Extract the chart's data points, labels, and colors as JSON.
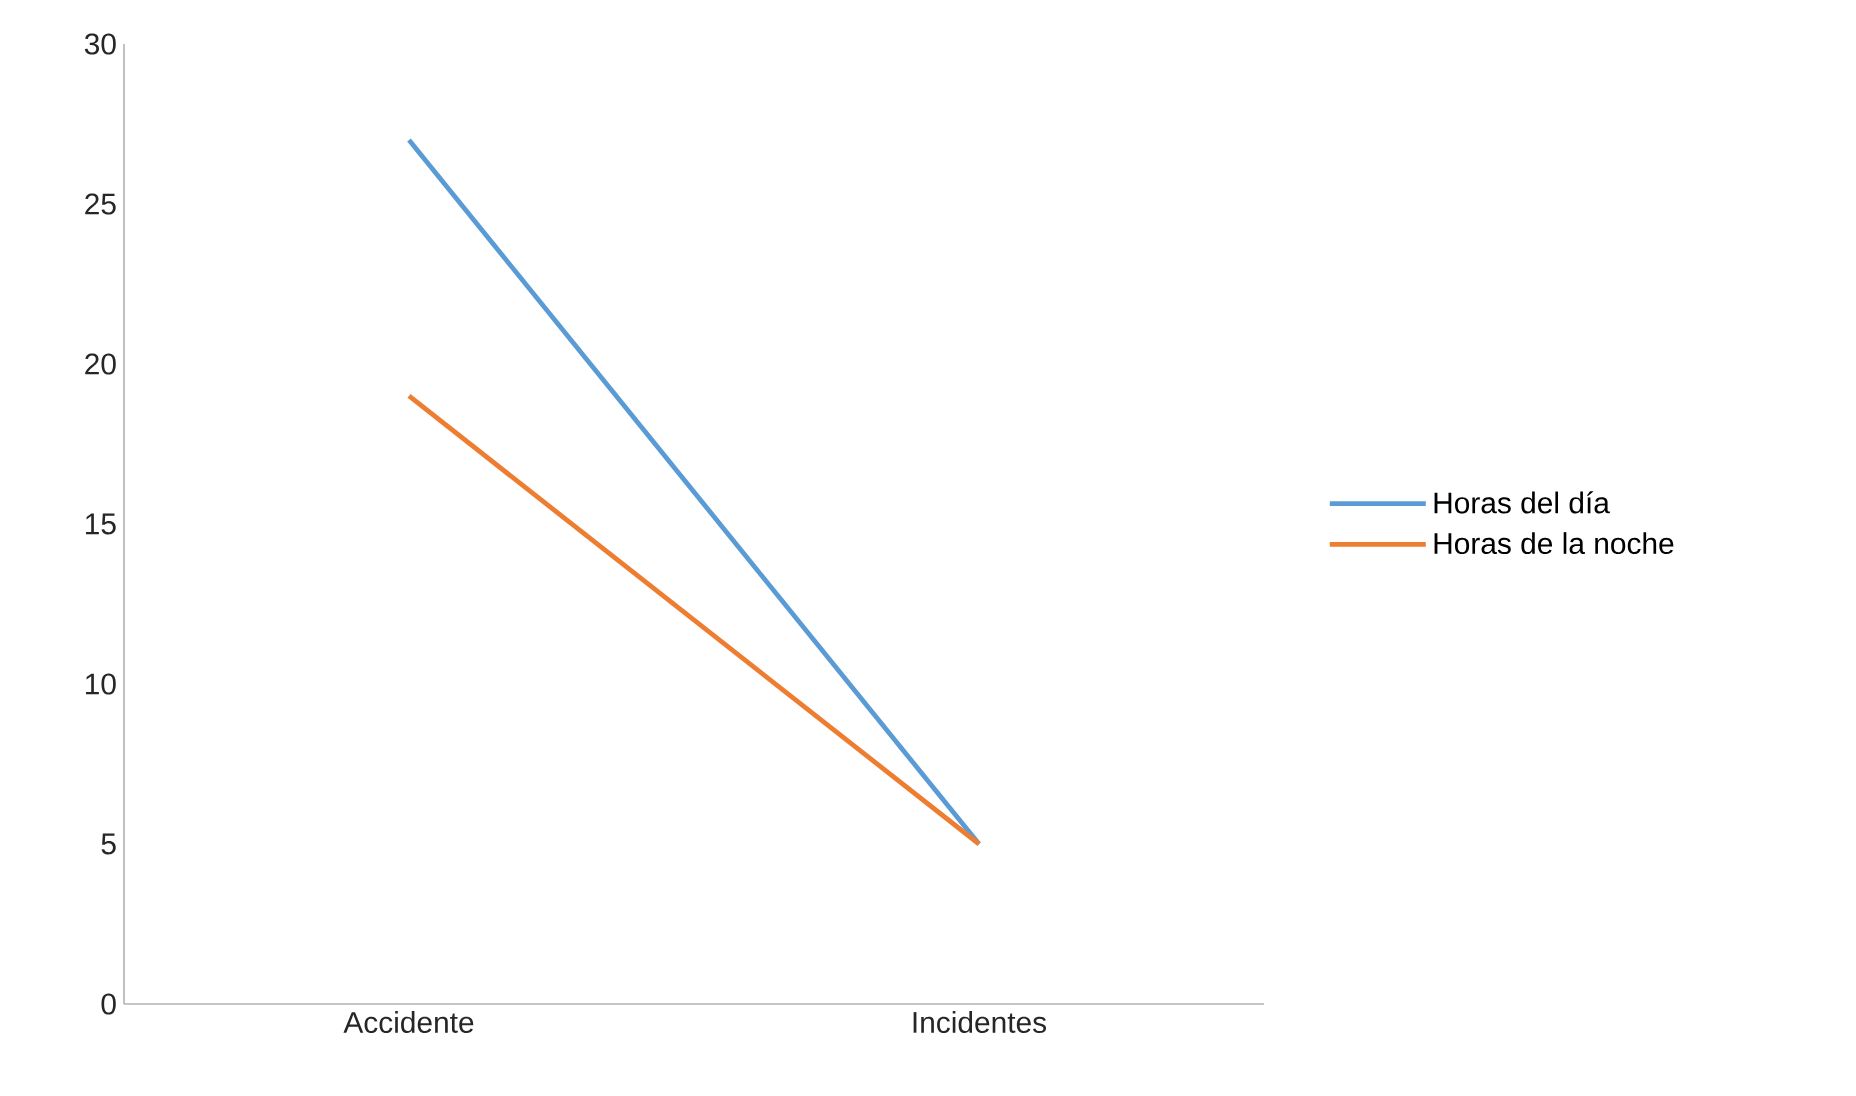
{
  "chart_data": {
    "type": "line",
    "categories": [
      "Accidente",
      "Incidentes"
    ],
    "series": [
      {
        "name": "Horas del día",
        "color": "#5b9bd5",
        "values": [
          27,
          5
        ]
      },
      {
        "name": "Horas de la noche",
        "color": "#ed7d31",
        "values": [
          19,
          5
        ]
      }
    ],
    "ylim": [
      0,
      30
    ],
    "yticks": [
      0,
      5,
      10,
      15,
      20,
      25,
      30
    ],
    "grid": false,
    "legend": "right",
    "marker": "none",
    "line_style": "solid"
  }
}
